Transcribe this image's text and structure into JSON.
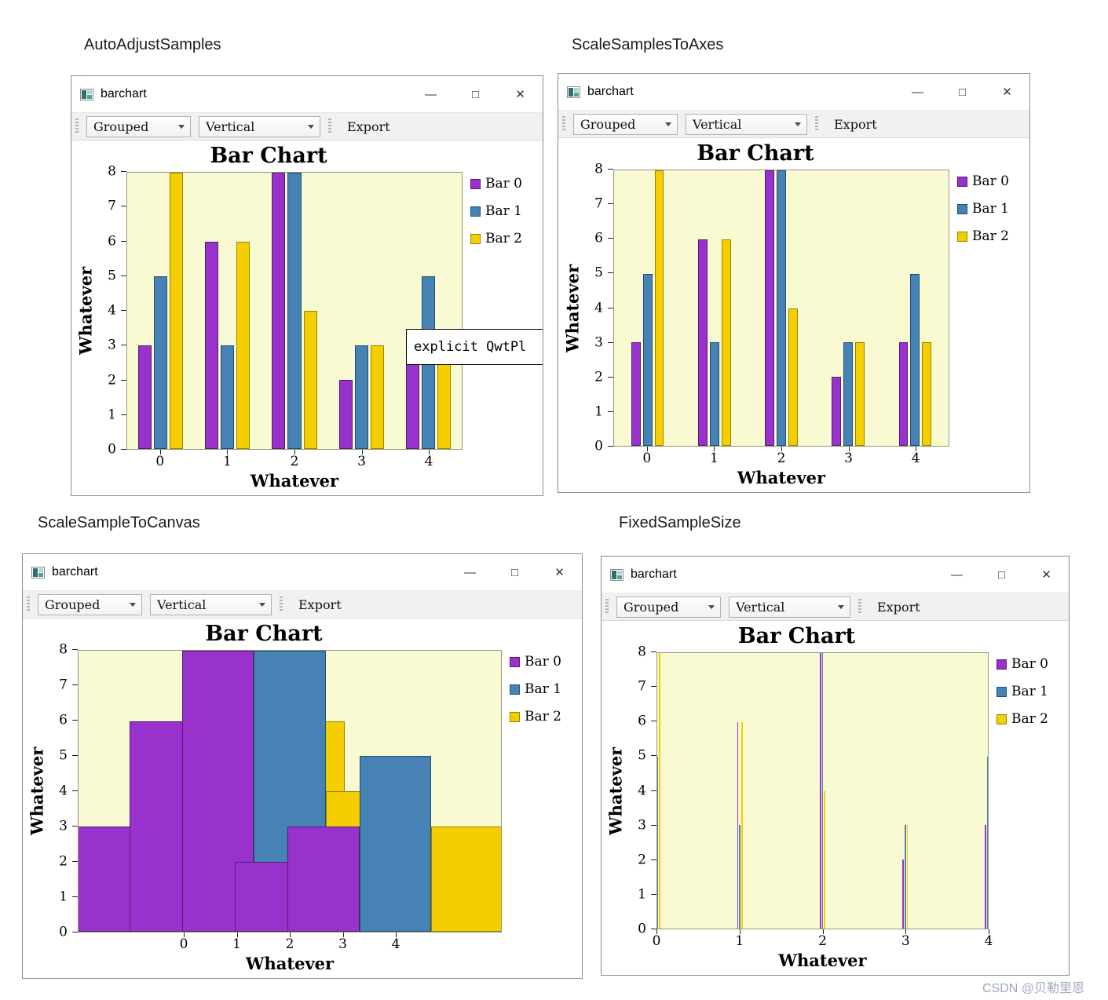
{
  "watermark": {
    "text": "CSDN @贝勒里恩"
  },
  "chrome": {
    "minimize_glyph": "—",
    "maximize_glyph": "□",
    "close_glyph": "✕"
  },
  "windows": [
    {
      "section_label": "AutoAdjustSamples",
      "title": "barchart",
      "toolbar": {
        "grouped": "Grouped",
        "orientation": "Vertical",
        "export": "Export"
      },
      "tooltip": "explicit QwtPl"
    },
    {
      "section_label": "ScaleSamplesToAxes",
      "title": "barchart",
      "toolbar": {
        "grouped": "Grouped",
        "orientation": "Vertical",
        "export": "Export"
      }
    },
    {
      "section_label": "ScaleSampleToCanvas",
      "title": "barchart",
      "toolbar": {
        "grouped": "Grouped",
        "orientation": "Vertical",
        "export": "Export"
      }
    },
    {
      "section_label": "FixedSampleSize",
      "title": "barchart",
      "toolbar": {
        "grouped": "Grouped",
        "orientation": "Vertical",
        "export": "Export"
      }
    }
  ],
  "chart_data": [
    {
      "type": "bar",
      "mode": "AutoAdjustSamples",
      "title": "Bar Chart",
      "xlabel": "Whatever",
      "ylabel": "Whatever",
      "categories": [
        "0",
        "1",
        "2",
        "3",
        "4"
      ],
      "yticks": [
        "0",
        "1",
        "2",
        "3",
        "4",
        "5",
        "6",
        "7",
        "8"
      ],
      "ylim": [
        0,
        8
      ],
      "legend_position": "right",
      "plot_bg": "#FAFAD2",
      "series": [
        {
          "name": "Bar 0",
          "color": "#9932CC",
          "border": "#581A73",
          "values": [
            3,
            6,
            8,
            2,
            3
          ]
        },
        {
          "name": "Bar 1",
          "color": "#4682B4",
          "border": "#1F4E79",
          "values": [
            5,
            3,
            8,
            3,
            5
          ]
        },
        {
          "name": "Bar 2",
          "color": "#F5CE00",
          "border": "#9A8200",
          "values": [
            8,
            6,
            4,
            3,
            3
          ]
        }
      ]
    },
    {
      "type": "bar",
      "mode": "ScaleSamplesToAxes",
      "title": "Bar Chart",
      "xlabel": "Whatever",
      "ylabel": "Whatever",
      "categories": [
        "0",
        "1",
        "2",
        "3",
        "4"
      ],
      "yticks": [
        "0",
        "1",
        "2",
        "3",
        "4",
        "5",
        "6",
        "7",
        "8"
      ],
      "ylim": [
        0,
        8
      ],
      "legend_position": "right",
      "plot_bg": "#FAFAD2",
      "series": [
        {
          "name": "Bar 0",
          "color": "#9932CC",
          "border": "#581A73",
          "values": [
            3,
            6,
            8,
            2,
            3
          ]
        },
        {
          "name": "Bar 1",
          "color": "#4682B4",
          "border": "#1F4E79",
          "values": [
            5,
            3,
            8,
            3,
            5
          ]
        },
        {
          "name": "Bar 2",
          "color": "#F5CE00",
          "border": "#9A8200",
          "values": [
            8,
            6,
            4,
            3,
            3
          ]
        }
      ]
    },
    {
      "type": "bar",
      "mode": "ScaleSampleToCanvas",
      "title": "Bar Chart",
      "xlabel": "Whatever",
      "ylabel": "Whatever",
      "categories": [
        "0",
        "1",
        "2",
        "3",
        "4"
      ],
      "yticks": [
        "0",
        "1",
        "2",
        "3",
        "4",
        "5",
        "6",
        "7",
        "8"
      ],
      "ylim": [
        0,
        8
      ],
      "legend_position": "right",
      "plot_bg": "#FAFAD2",
      "series": [
        {
          "name": "Bar 0",
          "color": "#9932CC",
          "border": "#581A73",
          "values": [
            3,
            6,
            8,
            2,
            3
          ]
        },
        {
          "name": "Bar 1",
          "color": "#4682B4",
          "border": "#1F4E79",
          "values": [
            5,
            3,
            8,
            3,
            5
          ]
        },
        {
          "name": "Bar 2",
          "color": "#F5CE00",
          "border": "#9A8200",
          "values": [
            8,
            6,
            4,
            3,
            3
          ]
        }
      ]
    },
    {
      "type": "bar",
      "mode": "FixedSampleSize",
      "title": "Bar Chart",
      "xlabel": "Whatever",
      "ylabel": "Whatever",
      "categories": [
        "0",
        "1",
        "2",
        "3",
        "4"
      ],
      "yticks": [
        "0",
        "1",
        "2",
        "3",
        "4",
        "5",
        "6",
        "7",
        "8"
      ],
      "ylim": [
        0,
        8
      ],
      "legend_position": "right",
      "plot_bg": "#FAFAD2",
      "series": [
        {
          "name": "Bar 0",
          "color": "#9932CC",
          "border": "#581A73",
          "values": [
            3,
            6,
            8,
            2,
            3
          ]
        },
        {
          "name": "Bar 1",
          "color": "#4682B4",
          "border": "#1F4E79",
          "values": [
            5,
            3,
            8,
            3,
            5
          ]
        },
        {
          "name": "Bar 2",
          "color": "#F5CE00",
          "border": "#9A8200",
          "values": [
            8,
            6,
            4,
            3,
            3
          ]
        }
      ]
    }
  ]
}
